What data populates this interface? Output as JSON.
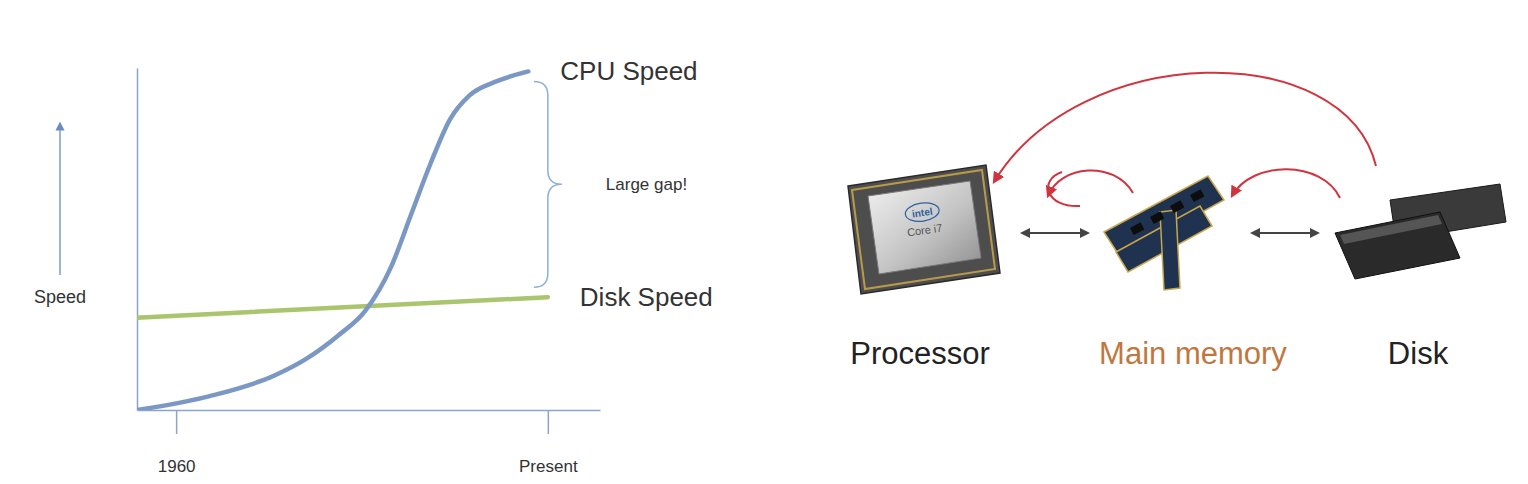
{
  "chart_data": {
    "type": "line",
    "y_label": "Speed",
    "xlim": [
      1954,
      2025
    ],
    "xticks": [
      1960,
      {
        "value": 2017,
        "label": "Present"
      }
    ],
    "ylim": [
      0,
      100
    ],
    "tick_labels": "x",
    "grid": false,
    "series": [
      {
        "name": "CPU Speed",
        "color": "#7b98c4",
        "x": [
          1954,
          1965,
          1975,
          1980,
          1985,
          1989,
          1993,
          1996,
          1999,
          2002,
          2005,
          2009,
          2014
        ],
        "values": [
          0,
          4,
          10,
          15,
          22,
          29,
          42,
          57,
          72,
          85,
          92,
          96,
          99
        ]
      },
      {
        "name": "Disk Speed",
        "color": "#a9c56e",
        "x": [
          1954,
          2017
        ],
        "values": [
          27,
          33
        ]
      }
    ],
    "annotations": [
      "Large gap!"
    ]
  },
  "diagram": {
    "nodes": [
      {
        "label": "Processor",
        "color": "#222222"
      },
      {
        "label": "Main memory",
        "color": "#c0773f"
      },
      {
        "label": "Disk",
        "color": "#222222"
      }
    ],
    "chip": {
      "brand": "intel",
      "model": "Core i7"
    }
  }
}
